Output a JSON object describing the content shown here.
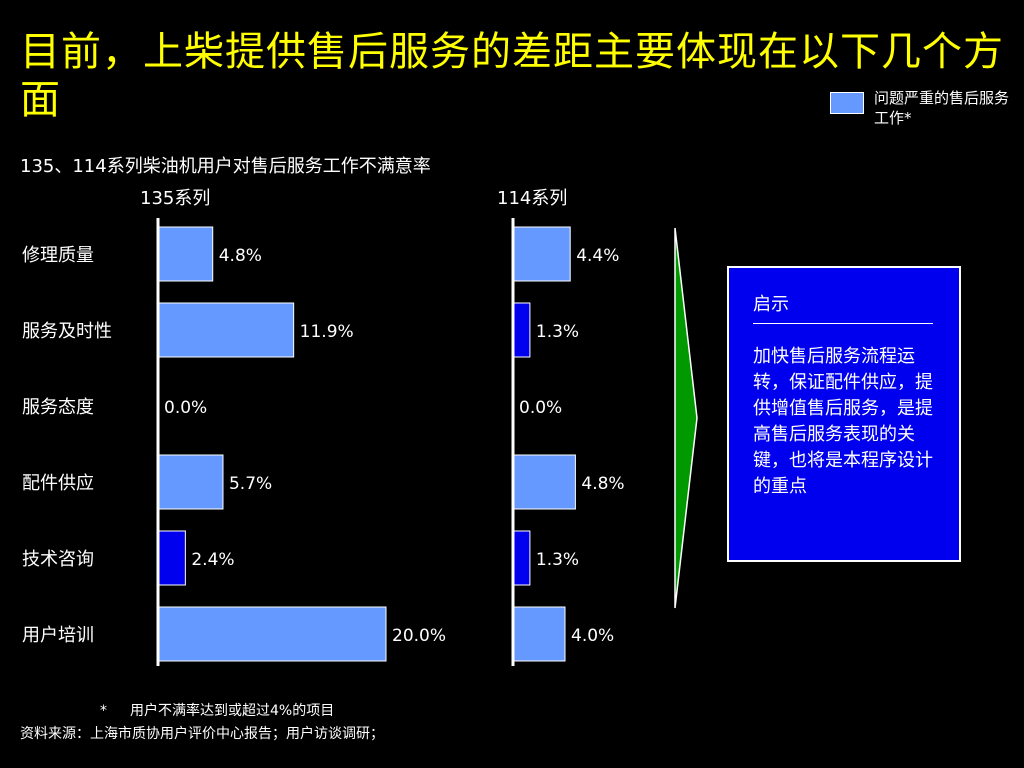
{
  "title": "目前，上柴提供售后服务的差距主要体现在以下几个方面",
  "legend": {
    "label": "问题严重的售后服务工作*",
    "color": "#6699ff"
  },
  "insight": {
    "title": "启示",
    "body": "加快售后服务流程运转，保证配件供应，提供增值售后服务，是提高售后服务表现的关键，也将是本程序设计的重点"
  },
  "footnote": {
    "marker": "*",
    "text": "用户不满率达到或超过4%的项目"
  },
  "source": "资料来源：上海市质协用户评价中心报告；用户访谈调研；",
  "colors": {
    "background": "#000000",
    "title": "#ffff00",
    "highlight_bar": "#6699ff",
    "normal_bar": "#0000ee",
    "arrow": "#009900"
  },
  "chart_data": {
    "type": "bar",
    "orientation": "horizontal",
    "title": "135、114系列柴油机用户对售后服务工作不满意率",
    "categories": [
      "修理质量",
      "服务及时性",
      "服务态度",
      "配件供应",
      "技术咨询",
      "用户培训"
    ],
    "series": [
      {
        "name": "135系列",
        "values": [
          4.8,
          11.9,
          0.0,
          5.7,
          2.4,
          20.0
        ],
        "labels": [
          "4.8%",
          "11.9%",
          "0.0%",
          "5.7%",
          "2.4%",
          "20.0%"
        ]
      },
      {
        "name": "114系列",
        "values": [
          4.4,
          1.3,
          0.0,
          4.8,
          1.3,
          4.0
        ],
        "labels": [
          "4.4%",
          "1.3%",
          "0.0%",
          "4.8%",
          "1.3%",
          "4.0%"
        ]
      }
    ],
    "threshold": 4.0,
    "unit": "%",
    "grid": false
  }
}
